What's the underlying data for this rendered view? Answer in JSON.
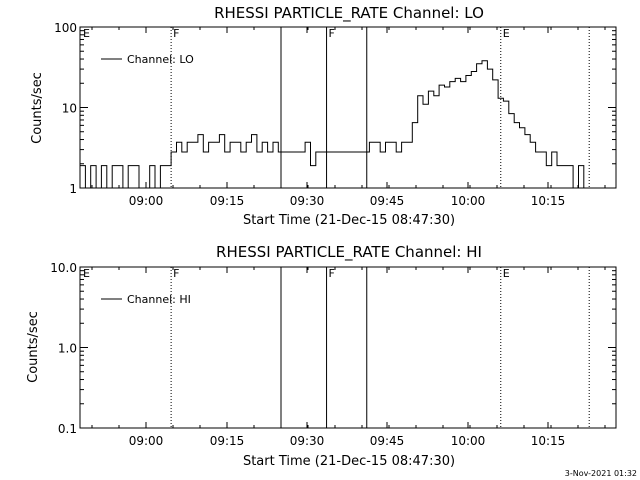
{
  "footer": {
    "timestamp": "3-Nov-2021 01:32"
  },
  "chart_data": [
    {
      "type": "line",
      "title": "RHESSI PARTICLE_RATE Channel: LO",
      "xlabel": "Start Time (21-Dec-15 08:47:30)",
      "ylabel": "Counts/sec",
      "yscale": "log",
      "ylim": [
        1,
        100
      ],
      "xlim_minutes": [
        0,
        100
      ],
      "x_tick_labels": [
        "09:00",
        "09:15",
        "09:30",
        "09:45",
        "10:00",
        "10:15"
      ],
      "y_tick_labels": [
        "1",
        "10",
        "100"
      ],
      "legend": {
        "entries": [
          "Channel: LO"
        ],
        "placement": "top-left"
      },
      "markers": [
        {
          "label": "E",
          "minute": 0,
          "style": "dotted"
        },
        {
          "label": "F",
          "minute": 17,
          "style": "dotted"
        },
        {
          "label": "",
          "minute": 37.5,
          "style": "solid"
        },
        {
          "label": "F",
          "minute": 46,
          "style": "solid"
        },
        {
          "label": "",
          "minute": 53.5,
          "style": "solid"
        },
        {
          "label": "E",
          "minute": 78.5,
          "style": "dotted"
        },
        {
          "label": "",
          "minute": 95,
          "style": "dotted"
        }
      ],
      "series": [
        {
          "name": "Channel: LO",
          "x_minutes": [
            0,
            1,
            2,
            3,
            4,
            5,
            6,
            7,
            8,
            9,
            10,
            11,
            12,
            13,
            14,
            15,
            16,
            17,
            18,
            19,
            20,
            21,
            22,
            23,
            24,
            25,
            26,
            27,
            28,
            29,
            30,
            31,
            32,
            33,
            34,
            35,
            36,
            37,
            38,
            39,
            40,
            41,
            42,
            43,
            44,
            45,
            46,
            47,
            48,
            49,
            50,
            51,
            52,
            53,
            54,
            55,
            56,
            57,
            58,
            59,
            60,
            61,
            62,
            63,
            64,
            65,
            66,
            67,
            68,
            69,
            70,
            71,
            72,
            73,
            74,
            75,
            76,
            77,
            78,
            79,
            80,
            81,
            82,
            83,
            84,
            85,
            86,
            87,
            88,
            89,
            90,
            91,
            92,
            93,
            94,
            95,
            96,
            97,
            98,
            99,
            100
          ],
          "y": [
            1.9,
            1,
            1.9,
            1,
            1.9,
            1,
            1.9,
            1.9,
            1,
            1.9,
            1.9,
            1,
            1,
            1.9,
            1,
            1.9,
            1.9,
            2.8,
            3.7,
            2.8,
            3.7,
            3.7,
            4.6,
            2.8,
            3.7,
            3.7,
            4.6,
            2.8,
            3.7,
            3.7,
            2.8,
            3.7,
            4.6,
            2.8,
            3.7,
            2.8,
            3.7,
            2.8,
            2.8,
            2.8,
            2.8,
            2.8,
            3.7,
            1.9,
            2.8,
            2.8,
            2.8,
            2.8,
            2.8,
            2.8,
            2.8,
            2.8,
            2.8,
            2.8,
            3.7,
            3.7,
            2.8,
            3.7,
            3.7,
            2.8,
            3.7,
            3.7,
            6.5,
            14,
            11,
            16,
            14,
            19,
            18,
            21,
            23,
            21,
            25,
            28,
            35,
            38,
            30,
            22,
            13,
            12,
            8.4,
            6.5,
            5.6,
            4.6,
            3.7,
            2.8,
            2.8,
            1.9,
            2.8,
            1.9,
            1.9,
            1.9,
            1,
            1.9,
            1,
            1,
            1,
            1,
            1,
            1,
            1
          ]
        }
      ]
    },
    {
      "type": "line",
      "title": "RHESSI PARTICLE_RATE Channel: HI",
      "xlabel": "Start Time (21-Dec-15 08:47:30)",
      "ylabel": "Counts/sec",
      "yscale": "log",
      "ylim": [
        0.1,
        10
      ],
      "xlim_minutes": [
        0,
        100
      ],
      "x_tick_labels": [
        "09:00",
        "09:15",
        "09:30",
        "09:45",
        "10:00",
        "10:15"
      ],
      "y_tick_labels": [
        "0.1",
        "1.0",
        "10.0"
      ],
      "legend": {
        "entries": [
          "Channel: HI"
        ],
        "placement": "top-left"
      },
      "markers": [
        {
          "label": "E",
          "minute": 0,
          "style": "dotted"
        },
        {
          "label": "F",
          "minute": 17,
          "style": "dotted"
        },
        {
          "label": "",
          "minute": 37.5,
          "style": "solid"
        },
        {
          "label": "F",
          "minute": 46,
          "style": "solid"
        },
        {
          "label": "",
          "minute": 53.5,
          "style": "solid"
        },
        {
          "label": "E",
          "minute": 78.5,
          "style": "dotted"
        },
        {
          "label": "",
          "minute": 95,
          "style": "dotted"
        }
      ],
      "series": []
    }
  ]
}
